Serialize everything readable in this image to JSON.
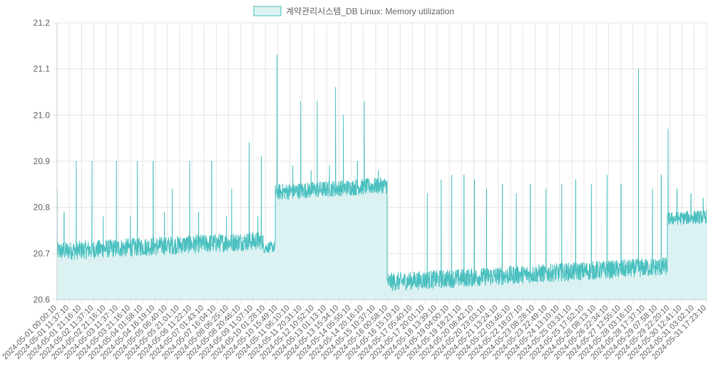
{
  "chart_data": {
    "type": "line",
    "title": "",
    "xlabel": "",
    "ylabel": "",
    "ylim": [
      20.6,
      21.2
    ],
    "yticks": [
      "20.6",
      "20.7",
      "20.8",
      "20.9",
      "21.0",
      "21.1",
      "21.2"
    ],
    "grid": true,
    "legend_position": "top-center",
    "x_tick_labels": [
      "2024-05-01 00:00:10",
      "2024-05-01 11:37:10",
      "2024-05-01 21:16:10",
      "2024-05-02 11:37:10",
      "2024-05-02 21:16:10",
      "2024-05-03 11:37:10",
      "2024-05-03 21:16:10",
      "2024-05-04 01:58:10",
      "2024-05-04 16:19:10",
      "2024-05-05 06:40:10",
      "2024-05-05 21:01:10",
      "2024-05-06 11:22:10",
      "2024-05-07 01:43:10",
      "2024-05-07 16:04:10",
      "2024-05-08 06:25:10",
      "2024-05-08 20:46:10",
      "2024-05-09 11:07:10",
      "2024-05-10 01:28:10",
      "2024-05-10 15:49:10",
      "2024-05-11 06:10:10",
      "2024-05-11 20:31:10",
      "2024-05-12 10:52:10",
      "2024-05-13 01:13:10",
      "2024-05-13 15:34:10",
      "2024-05-14 05:55:10",
      "2024-05-14 20:16:10",
      "2024-05-15 10:37:10",
      "2024-05-16 00:58:10",
      "2024-05-16 15:19:10",
      "2024-05-17 05:40:10",
      "2024-05-17 20:01:10",
      "2024-05-18 13:39:10",
      "2024-05-19 04:00:10",
      "2024-05-19 18:21:10",
      "2024-05-20 08:42:10",
      "2024-05-20 23:03:10",
      "2024-05-21 13:24:10",
      "2024-05-22 03:46:10",
      "2024-05-22 18:07:10",
      "2024-05-23 08:28:10",
      "2024-05-23 22:49:10",
      "2024-05-24 13:10:10",
      "2024-05-25 03:31:10",
      "2024-05-25 17:52:10",
      "2024-05-26 08:13:10",
      "2024-05-26 22:34:10",
      "2024-05-27 12:55:10",
      "2024-05-28 03:16:10",
      "2024-05-28 17:37:10",
      "2024-05-29 07:58:10",
      "2024-05-29 22:20:10",
      "2024-05-30 12:41:10",
      "2024-05-31 03:02:10",
      "2024-05-31 17:23:10"
    ],
    "series": [
      {
        "name": "계약관리시스템_DB Linux: Memory utilization",
        "border_color": "#4bc0c0",
        "fill_color": "#dcf2f2",
        "segments": [
          {
            "x_start": "2024-05-01 00:00:10",
            "x_end": "2024-05-10 20:00:00",
            "mean_start": 20.705,
            "mean_end": 20.728,
            "noise": 0.025
          },
          {
            "x_start": "2024-05-10 20:00:00",
            "x_end": "2024-05-11 10:00:00",
            "mean_start": 20.712,
            "mean_end": 20.715,
            "noise": 0.015
          },
          {
            "x_start": "2024-05-11 10:00:00",
            "x_end": "2024-05-16 18:00:00",
            "mean_start": 20.833,
            "mean_end": 20.848,
            "noise": 0.022
          },
          {
            "x_start": "2024-05-16 18:00:00",
            "x_end": "2024-05-30 03:00:00",
            "mean_start": 20.638,
            "mean_end": 20.672,
            "noise": 0.025
          },
          {
            "x_start": "2024-05-30 03:00:00",
            "x_end": "2024-05-31 23:59:00",
            "mean_start": 20.775,
            "mean_end": 20.78,
            "noise": 0.018
          }
        ],
        "spikes": [
          {
            "x": "2024-05-01 00:10:00",
            "y": 20.84
          },
          {
            "x": "2024-05-01 08:00:00",
            "y": 20.79
          },
          {
            "x": "2024-05-01 22:00:00",
            "y": 20.9
          },
          {
            "x": "2024-05-02 16:00:00",
            "y": 20.9
          },
          {
            "x": "2024-05-03 05:00:00",
            "y": 20.78
          },
          {
            "x": "2024-05-03 20:00:00",
            "y": 20.9
          },
          {
            "x": "2024-05-04 12:00:00",
            "y": 20.78
          },
          {
            "x": "2024-05-04 20:00:00",
            "y": 20.9
          },
          {
            "x": "2024-05-05 14:00:00",
            "y": 20.9
          },
          {
            "x": "2024-05-06 03:00:00",
            "y": 20.79
          },
          {
            "x": "2024-05-06 12:00:00",
            "y": 20.84
          },
          {
            "x": "2024-05-07 08:00:00",
            "y": 20.9
          },
          {
            "x": "2024-05-07 18:00:00",
            "y": 20.79
          },
          {
            "x": "2024-05-08 09:00:00",
            "y": 20.9
          },
          {
            "x": "2024-05-09 02:00:00",
            "y": 20.78
          },
          {
            "x": "2024-05-09 08:00:00",
            "y": 20.84
          },
          {
            "x": "2024-05-10 04:00:00",
            "y": 20.94
          },
          {
            "x": "2024-05-10 14:00:00",
            "y": 20.78
          },
          {
            "x": "2024-05-10 18:00:00",
            "y": 20.91
          },
          {
            "x": "2024-05-11 12:00:00",
            "y": 21.13
          },
          {
            "x": "2024-05-12 06:00:00",
            "y": 20.89
          },
          {
            "x": "2024-05-12 15:00:00",
            "y": 21.03
          },
          {
            "x": "2024-05-13 03:00:00",
            "y": 20.88
          },
          {
            "x": "2024-05-13 10:00:00",
            "y": 21.03
          },
          {
            "x": "2024-05-14 00:00:00",
            "y": 20.89
          },
          {
            "x": "2024-05-14 07:00:00",
            "y": 21.06
          },
          {
            "x": "2024-05-14 16:00:00",
            "y": 21.0
          },
          {
            "x": "2024-05-15 08:00:00",
            "y": 20.9
          },
          {
            "x": "2024-05-15 16:00:00",
            "y": 21.03
          },
          {
            "x": "2024-05-16 08:00:00",
            "y": 20.88
          },
          {
            "x": "2024-05-18 16:00:00",
            "y": 20.83
          },
          {
            "x": "2024-05-19 08:00:00",
            "y": 20.86
          },
          {
            "x": "2024-05-19 20:00:00",
            "y": 20.87
          },
          {
            "x": "2024-05-20 10:00:00",
            "y": 20.87
          },
          {
            "x": "2024-05-20 22:00:00",
            "y": 20.86
          },
          {
            "x": "2024-05-21 12:00:00",
            "y": 20.84
          },
          {
            "x": "2024-05-22 06:00:00",
            "y": 20.85
          },
          {
            "x": "2024-05-22 22:00:00",
            "y": 20.83
          },
          {
            "x": "2024-05-23 14:00:00",
            "y": 20.85
          },
          {
            "x": "2024-05-24 08:00:00",
            "y": 20.84
          },
          {
            "x": "2024-05-25 02:00:00",
            "y": 20.85
          },
          {
            "x": "2024-05-25 18:00:00",
            "y": 20.86
          },
          {
            "x": "2024-05-26 12:00:00",
            "y": 20.85
          },
          {
            "x": "2024-05-27 06:00:00",
            "y": 20.87
          },
          {
            "x": "2024-05-27 22:00:00",
            "y": 20.85
          },
          {
            "x": "2024-05-28 18:00:00",
            "y": 21.1
          },
          {
            "x": "2024-05-29 10:00:00",
            "y": 20.84
          },
          {
            "x": "2024-05-29 20:00:00",
            "y": 20.87
          },
          {
            "x": "2024-05-30 04:00:00",
            "y": 20.97
          },
          {
            "x": "2024-05-30 14:00:00",
            "y": 20.84
          },
          {
            "x": "2024-05-31 06:00:00",
            "y": 20.83
          },
          {
            "x": "2024-05-31 20:00:00",
            "y": 20.82
          }
        ]
      }
    ]
  }
}
